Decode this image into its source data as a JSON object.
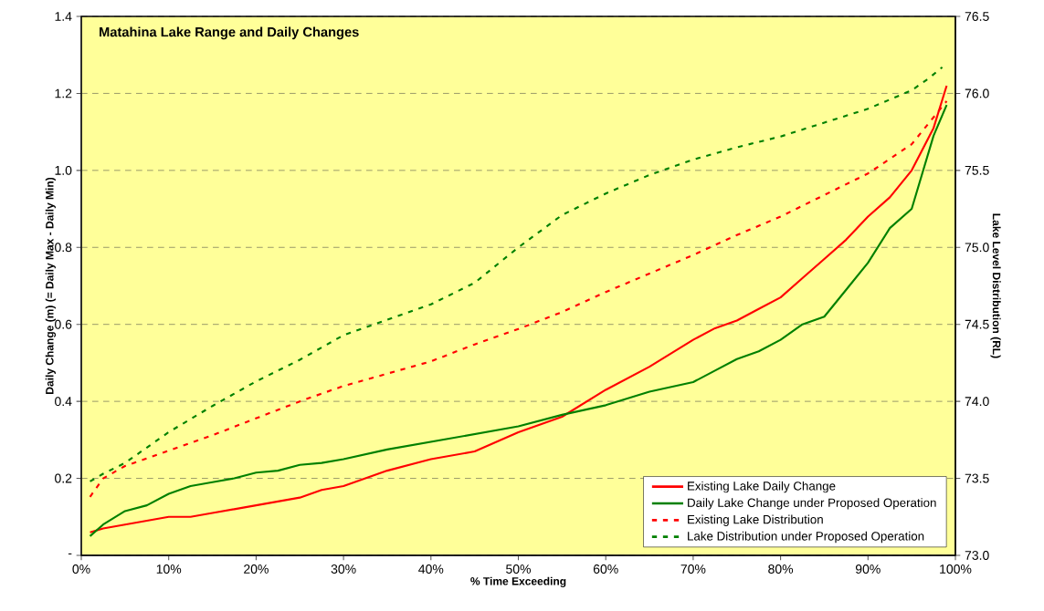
{
  "chart_data": {
    "type": "line",
    "title": "Matahina Lake Range and Daily Changes",
    "xlabel": "% Time Exceeding",
    "ylabel": "Daily Change (m) (= Daily Max - Daily Min)",
    "y2label": "Lake Level Distribution (RL)",
    "xlim": [
      0,
      100
    ],
    "xticks": [
      {
        "value": 0,
        "label": "0%"
      },
      {
        "value": 10,
        "label": "10%"
      },
      {
        "value": 20,
        "label": "20%"
      },
      {
        "value": 30,
        "label": "30%"
      },
      {
        "value": 40,
        "label": "40%"
      },
      {
        "value": 50,
        "label": "50%"
      },
      {
        "value": 60,
        "label": "60%"
      },
      {
        "value": 70,
        "label": "70%"
      },
      {
        "value": 80,
        "label": "80%"
      },
      {
        "value": 90,
        "label": "90%"
      },
      {
        "value": 100,
        "label": "100%"
      }
    ],
    "ylim": [
      0,
      1.4
    ],
    "yticks": [
      {
        "value": 0,
        "label": "-"
      },
      {
        "value": 0.2,
        "label": "0.2"
      },
      {
        "value": 0.4,
        "label": "0.4"
      },
      {
        "value": 0.6,
        "label": "0.6"
      },
      {
        "value": 0.8,
        "label": "0.8"
      },
      {
        "value": 1,
        "label": "1.0"
      },
      {
        "value": 1.2,
        "label": "1.2"
      },
      {
        "value": 1.4,
        "label": "1.4"
      }
    ],
    "y2lim": [
      73,
      76.5
    ],
    "y2ticks": [
      {
        "value": 73,
        "label": "73.0"
      },
      {
        "value": 73.5,
        "label": "73.5"
      },
      {
        "value": 74,
        "label": "74.0"
      },
      {
        "value": 74.5,
        "label": "74.5"
      },
      {
        "value": 75,
        "label": "75.0"
      },
      {
        "value": 75.5,
        "label": "75.5"
      },
      {
        "value": 76,
        "label": "76.0"
      },
      {
        "value": 76.5,
        "label": "76.5"
      }
    ],
    "grid": "y",
    "legend": "bottom right",
    "marker": "none",
    "series": [
      {
        "name": "Existing Lake Daily Change",
        "color": "#ff0000",
        "line_style": "solid",
        "x": [
          1,
          2.5,
          5,
          7.5,
          10,
          12.5,
          15,
          17.5,
          20,
          22.5,
          25,
          27.5,
          30,
          35,
          40,
          45,
          50,
          55,
          60,
          65,
          70,
          72.5,
          75,
          77.5,
          80,
          82.5,
          85,
          87.5,
          90,
          92.5,
          95,
          97.5,
          99
        ],
        "values": [
          0.06,
          0.07,
          0.08,
          0.09,
          0.1,
          0.1,
          0.11,
          0.12,
          0.13,
          0.14,
          0.15,
          0.17,
          0.18,
          0.22,
          0.25,
          0.27,
          0.32,
          0.36,
          0.43,
          0.49,
          0.56,
          0.59,
          0.61,
          0.64,
          0.67,
          0.72,
          0.77,
          0.82,
          0.88,
          0.93,
          1.0,
          1.11,
          1.22
        ]
      },
      {
        "name": "Daily Lake Change under Proposed Operation",
        "color": "#008000",
        "line_style": "solid",
        "x": [
          1,
          2.5,
          5,
          7.5,
          10,
          12.5,
          15,
          17.5,
          20,
          22.5,
          25,
          27.5,
          30,
          35,
          40,
          45,
          50,
          55,
          60,
          65,
          70,
          72.5,
          75,
          77.5,
          80,
          82.5,
          85,
          87.5,
          90,
          92.5,
          95,
          97.5,
          99
        ],
        "values": [
          0.05,
          0.08,
          0.115,
          0.13,
          0.16,
          0.18,
          0.19,
          0.2,
          0.215,
          0.22,
          0.235,
          0.24,
          0.25,
          0.275,
          0.295,
          0.315,
          0.335,
          0.365,
          0.39,
          0.425,
          0.45,
          0.48,
          0.51,
          0.53,
          0.56,
          0.6,
          0.62,
          0.69,
          0.76,
          0.85,
          0.9,
          1.09,
          1.17
        ]
      },
      {
        "name": "Existing Lake Distribution",
        "color": "#ff0000",
        "line_style": "dashed",
        "axis": "y2",
        "x": [
          1,
          2.5,
          5,
          10,
          15,
          20,
          25,
          30,
          35,
          40,
          45,
          50,
          55,
          60,
          65,
          70,
          75,
          80,
          85,
          90,
          95,
          99
        ],
        "values": [
          73.38,
          73.5,
          73.58,
          73.68,
          73.78,
          73.89,
          74.0,
          74.1,
          74.18,
          74.26,
          74.37,
          74.47,
          74.58,
          74.71,
          74.83,
          74.95,
          75.08,
          75.2,
          75.34,
          75.48,
          75.67,
          75.95
        ]
      },
      {
        "name": "Lake Distribution under Proposed Operation",
        "color": "#008000",
        "line_style": "dashed",
        "axis": "y2",
        "x": [
          1,
          2.5,
          5,
          7.5,
          10,
          15,
          20,
          25,
          30,
          35,
          40,
          45,
          50,
          55,
          60,
          65,
          70,
          75,
          80,
          85,
          90,
          95,
          97,
          98.5
        ],
        "values": [
          73.48,
          73.53,
          73.6,
          73.7,
          73.8,
          73.97,
          74.13,
          74.27,
          74.43,
          74.53,
          74.63,
          74.77,
          75.0,
          75.21,
          75.35,
          75.47,
          75.57,
          75.65,
          75.72,
          75.81,
          75.9,
          76.02,
          76.1,
          76.17
        ]
      }
    ]
  }
}
